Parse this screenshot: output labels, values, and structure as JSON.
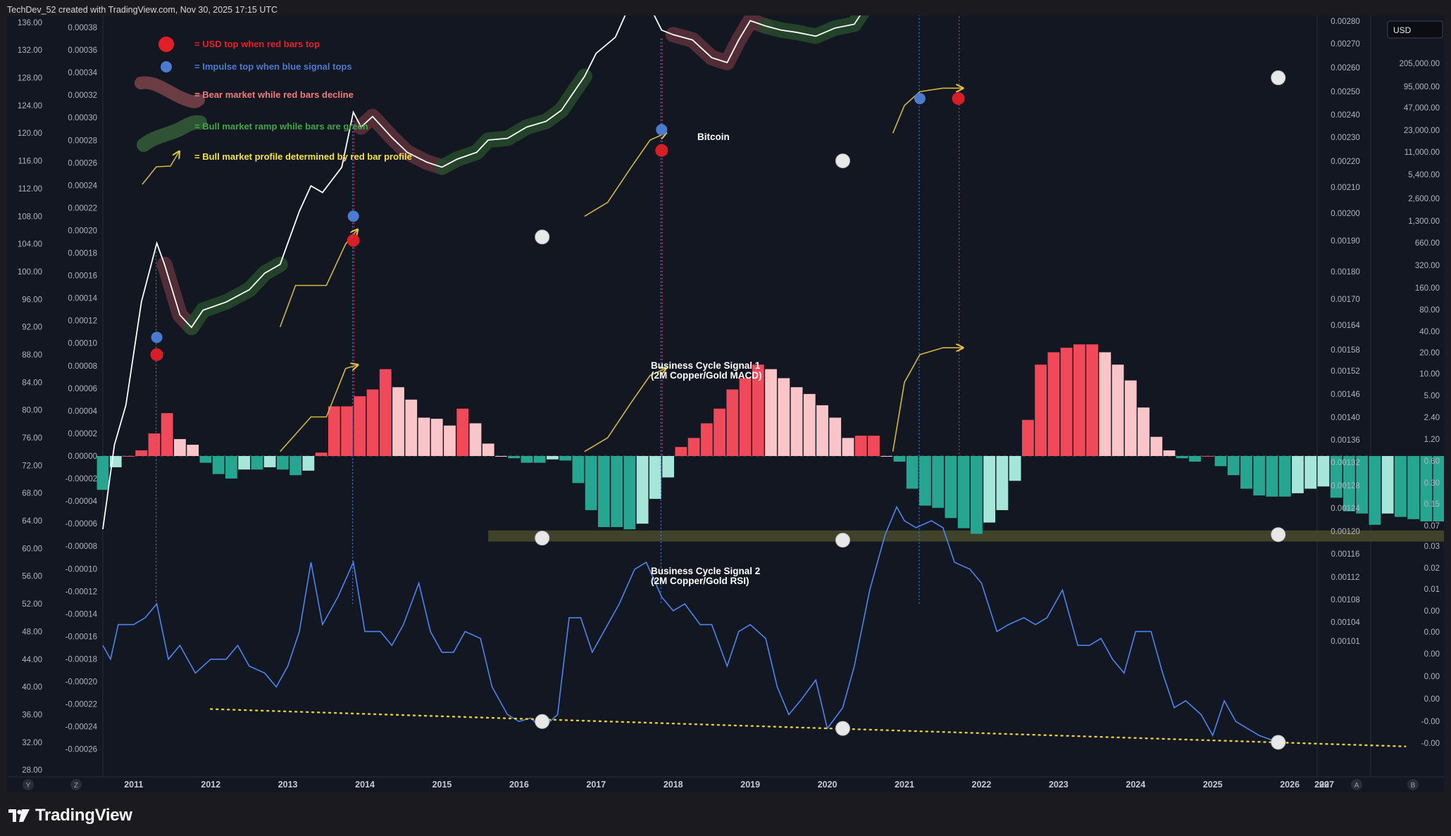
{
  "header": {
    "credit": "TechDev_52 created with TradingView.com, Nov 30, 2025 17:15 UTC"
  },
  "footer": {
    "brand": "TradingView"
  },
  "currency_badge": "USD",
  "bottom_buttons": {
    "y": "Y",
    "z": "Z",
    "a": "A",
    "b": "B"
  },
  "legend": {
    "red_dot": "= USD top when red bars top",
    "blue_dot": "= Impulse top when blue signal tops",
    "bear": "= Bear market while red bars decline",
    "bull": "= Bull market ramp while bars are green",
    "profile": "= Bull market profile determined by red bar profile"
  },
  "colors": {
    "red_top": "#e5202a",
    "blue_top": "#4a7bd0",
    "bear_text": "#f07c7c",
    "bull_text": "#3ea745",
    "profile_text": "#f5e342",
    "bar_red_strong": "#f04a5a",
    "bar_red_light": "#f9c5c9",
    "bar_green_strong": "#26a690",
    "bar_green_light": "#a6e6d8",
    "rsi_line": "#4a86ef",
    "price_line": "#ffffff",
    "support_band": "#4a4a2c",
    "background": "#131722"
  },
  "annotations": {
    "bitcoin": "Bitcoin",
    "signal1_line1": "Business Cycle Signal 1",
    "signal1_line2": "(2M Copper/Gold MACD)",
    "signal2_line1": "Business Cycle Signal 2",
    "signal2_line2": "(2M Copper/Gold RSI)"
  },
  "chart_data": {
    "type": "line",
    "x_axis": {
      "labels": [
        "2011",
        "2012",
        "2013",
        "2014",
        "2015",
        "2016",
        "2017",
        "2018",
        "2019",
        "2020",
        "2021",
        "2022",
        "2023",
        "2024",
        "2025",
        "2026",
        "2027",
        "20"
      ],
      "range": [
        2010.6,
        2028.0
      ]
    },
    "axis_left_1": {
      "ticks": [
        "136.00",
        "132.00",
        "128.00",
        "124.00",
        "120.00",
        "116.00",
        "112.00",
        "108.00",
        "104.00",
        "100.00",
        "96.00",
        "92.00",
        "88.00",
        "84.00",
        "80.00",
        "76.00",
        "72.00",
        "68.00",
        "64.00",
        "60.00",
        "56.00",
        "52.00",
        "48.00",
        "44.00",
        "40.00",
        "36.00",
        "32.00",
        "28.00"
      ],
      "range": [
        27.0,
        137.0
      ]
    },
    "axis_left_2": {
      "ticks": [
        "0.00038",
        "0.00036",
        "0.00034",
        "0.00032",
        "0.00030",
        "0.00028",
        "0.00026",
        "0.00024",
        "0.00022",
        "0.00020",
        "0.00018",
        "0.00016",
        "0.00014",
        "0.00012",
        "0.00010",
        "0.00008",
        "0.00006",
        "0.00004",
        "0.00002",
        "0.00000",
        "-0.00002",
        "-0.00004",
        "-0.00006",
        "-0.00008",
        "-0.00010",
        "-0.00012",
        "-0.00014",
        "-0.00016",
        "-0.00018",
        "-0.00020",
        "-0.00022",
        "-0.00024",
        "-0.00026"
      ],
      "range": [
        -0.00027,
        0.00038
      ]
    },
    "axis_right_1": {
      "ticks": [
        "0.00280",
        "0.00270",
        "0.00260",
        "0.00250",
        "0.00240",
        "0.00230",
        "0.00220",
        "0.00210",
        "0.00200",
        "0.00190",
        "0.00180",
        "0.00170",
        "0.00164",
        "0.00158",
        "0.00152",
        "0.00146",
        "0.00140",
        "0.00136",
        "0.00132",
        "0.00128",
        "0.00124",
        "0.00120",
        "0.00116",
        "0.00112",
        "0.00108",
        "0.00104",
        "0.00101"
      ]
    },
    "axis_right_2": {
      "ticks": [
        "205,000.00",
        "95,000.00",
        "47,000.00",
        "23,000.00",
        "11,000.00",
        "5,400.00",
        "2,600.00",
        "1,300.00",
        "660.00",
        "320.00",
        "160.00",
        "80.00",
        "40.00",
        "20.00",
        "10.00",
        "5.00",
        "2.40",
        "1.20",
        "0.60",
        "0.30",
        "0.15",
        "0.07",
        "0.03",
        "0.02",
        "0.01",
        "0.00",
        "0.00",
        "0.00",
        "0.00",
        "0.00",
        "-0.00",
        "-0.00"
      ],
      "scale": "log"
    },
    "series": [
      {
        "name": "Bitcoin",
        "x": [
          2010.6,
          2010.75,
          2010.9,
          2011.1,
          2011.3,
          2011.4,
          2011.6,
          2011.75,
          2011.9,
          2012.2,
          2012.5,
          2012.7,
          2012.9,
          2013.15,
          2013.3,
          2013.45,
          2013.7,
          2013.85,
          2013.95,
          2014.1,
          2014.35,
          2014.55,
          2014.8,
          2015.0,
          2015.2,
          2015.45,
          2015.6,
          2015.85,
          2016.1,
          2016.35,
          2016.55,
          2016.85,
          2017.0,
          2017.25,
          2017.45,
          2017.7,
          2017.85,
          2018.0,
          2018.25,
          2018.5,
          2018.7,
          2018.85,
          2019.0,
          2019.2,
          2019.4,
          2019.6,
          2019.85,
          2020.1,
          2020.35,
          2020.55,
          2020.75,
          2021.0,
          2021.2,
          2021.35,
          2021.5,
          2021.7,
          2021.85,
          2022.0,
          2022.3,
          2022.55,
          2022.8,
          2023.05,
          2023.25,
          2023.5,
          2023.75,
          2024.0,
          2024.2,
          2024.45,
          2024.7,
          2024.95,
          2025.2,
          2025.5,
          2025.85
        ],
        "values": [
          0.01,
          0.1,
          0.3,
          5,
          25,
          14,
          3.5,
          2.5,
          4,
          5,
          7,
          11,
          14,
          60,
          120,
          100,
          200,
          900,
          600,
          800,
          450,
          300,
          230,
          200,
          250,
          300,
          420,
          440,
          600,
          700,
          950,
          2400,
          4500,
          7000,
          18000,
          16000,
          8500,
          7500,
          6500,
          4000,
          3500,
          6500,
          11000,
          9500,
          8500,
          8000,
          7200,
          9000,
          10000,
          19000,
          30000,
          58000,
          52000,
          38000,
          47000,
          60000,
          48000,
          42000,
          20000,
          17000,
          16500,
          23000,
          27000,
          30000,
          35000,
          42000,
          65000,
          62000,
          68000,
          92000,
          98000,
          105000,
          100000
        ]
      },
      {
        "name": "Business Cycle Signal 2",
        "x": [
          2010.6,
          2010.7,
          2010.8,
          2011.0,
          2011.15,
          2011.3,
          2011.45,
          2011.6,
          2011.8,
          2012.0,
          2012.2,
          2012.35,
          2012.5,
          2012.7,
          2012.85,
          2013.0,
          2013.15,
          2013.3,
          2013.45,
          2013.65,
          2013.85,
          2014.0,
          2014.2,
          2014.35,
          2014.5,
          2014.7,
          2014.85,
          2015.0,
          2015.15,
          2015.3,
          2015.5,
          2015.65,
          2015.85,
          2016.0,
          2016.15,
          2016.3,
          2016.5,
          2016.65,
          2016.8,
          2016.95,
          2017.1,
          2017.3,
          2017.5,
          2017.65,
          2017.85,
          2018.0,
          2018.15,
          2018.35,
          2018.5,
          2018.7,
          2018.85,
          2019.0,
          2019.2,
          2019.35,
          2019.5,
          2019.65,
          2019.85,
          2020.0,
          2020.2,
          2020.35,
          2020.55,
          2020.75,
          2020.9,
          2021.0,
          2021.15,
          2021.35,
          2021.5,
          2021.65,
          2021.85,
          2022.0,
          2022.2,
          2022.35,
          2022.55,
          2022.7,
          2022.85,
          2023.05,
          2023.25,
          2023.4,
          2023.55,
          2023.7,
          2023.85,
          2024.0,
          2024.2,
          2024.35,
          2024.5,
          2024.65,
          2024.85,
          2025.0,
          2025.15,
          2025.3,
          2025.45,
          2025.6,
          2025.85
        ],
        "values": [
          46,
          44,
          49,
          49,
          50,
          52,
          44,
          46,
          42,
          44,
          44,
          46,
          43,
          42,
          40,
          43,
          48,
          58,
          49,
          53,
          58,
          48,
          48,
          46,
          49,
          55,
          48,
          45,
          45,
          48,
          47,
          40,
          36,
          35,
          35.5,
          34,
          36,
          50,
          50,
          45,
          48,
          52,
          57,
          58,
          53,
          51,
          52,
          49,
          49,
          43,
          48,
          49,
          47,
          40,
          36,
          38,
          41,
          34,
          37,
          43,
          54,
          62,
          66,
          64,
          63,
          64,
          63,
          58,
          57,
          55,
          48,
          49,
          50,
          49,
          50,
          54,
          46,
          46,
          47,
          44,
          42,
          48,
          48,
          42,
          37,
          38,
          36,
          33,
          38,
          35,
          34,
          33,
          32
        ]
      },
      {
        "name": "Business Cycle Signal 1",
        "type": "bar",
        "x_start": 2010.6,
        "x_step": 0.1667,
        "values": [
          -3e-05,
          -1e-05,
          0.0,
          5e-06,
          2e-05,
          3.8e-05,
          1.5e-05,
          1e-05,
          -6e-06,
          -1.6e-05,
          -2e-05,
          -1.2e-05,
          -1.2e-05,
          -1e-05,
          -1.2e-05,
          -1.7e-05,
          -1.3e-05,
          3e-06,
          4.4e-05,
          4.4e-05,
          5.3e-05,
          5.9e-05,
          7.7e-05,
          6.1e-05,
          5e-05,
          3.4e-05,
          3.3e-05,
          2.7e-05,
          4.2e-05,
          2.9e-05,
          1.1e-05,
          0.0,
          -2e-06,
          -6e-06,
          -6e-06,
          -3e-06,
          -4e-06,
          -2.4e-05,
          -4.8e-05,
          -6.3e-05,
          -6.3e-05,
          -6.5e-05,
          -6e-05,
          -3.8e-05,
          -1.9e-05,
          8e-06,
          1.6e-05,
          2.9e-05,
          4.2e-05,
          5.9e-05,
          6.9e-05,
          8.1e-05,
          7.7e-05,
          6.9e-05,
          6.1e-05,
          5.5e-05,
          4.5e-05,
          3.4e-05,
          1.6e-05,
          1.8e-05,
          1.8e-05,
          0.0,
          -5e-06,
          -2.9e-05,
          -4.4e-05,
          -4.6e-05,
          -5.5e-05,
          -6.4e-05,
          -6.9e-05,
          -5.9e-05,
          -4.8e-05,
          -2.2e-05,
          3.2e-05,
          8.1e-05,
          9.2e-05,
          9.6e-05,
          9.9e-05,
          9.9e-05,
          9.2e-05,
          8.1e-05,
          6.7e-05,
          4.3e-05,
          1.7e-05,
          5e-06,
          -2e-06,
          -5e-06,
          0.0,
          -9e-06,
          -1.7e-05,
          -2.9e-05,
          -3.5e-05,
          -3.6e-05,
          -3.6e-05,
          -3.3e-05,
          -2.9e-05,
          -2.7e-05,
          -3.7e-05,
          -4.9e-05,
          -5.1e-05,
          -6.1e-05,
          -5.1e-05,
          -5.4e-05,
          -5.6e-05,
          -5.8e-05,
          -5.8e-05
        ]
      }
    ],
    "markers": {
      "red_tops": [
        [
          2011.3,
          88
        ],
        [
          2013.85,
          104.5
        ],
        [
          2017.85,
          117.5
        ],
        [
          2021.7,
          125
        ]
      ],
      "blue_tops": [
        [
          2011.3,
          90.5
        ],
        [
          2013.85,
          108
        ],
        [
          2017.85,
          120.5
        ],
        [
          2021.2,
          125
        ]
      ],
      "white_circles": [
        [
          2016.3,
          105
        ],
        [
          2020.2,
          116
        ],
        [
          2025.85,
          128
        ],
        [
          2016.3,
          61.5
        ],
        [
          2020.2,
          61.2
        ],
        [
          2025.85,
          62
        ],
        [
          2016.3,
          35
        ],
        [
          2020.2,
          34
        ],
        [
          2025.85,
          32
        ]
      ]
    },
    "support_band": {
      "x_range": [
        2015.6,
        2028.0
      ],
      "y_range": [
        61,
        62.6
      ]
    },
    "trendline": {
      "x": [
        2012.0,
        2027.5
      ],
      "y": [
        36.8,
        31.4
      ]
    },
    "grid": false
  }
}
